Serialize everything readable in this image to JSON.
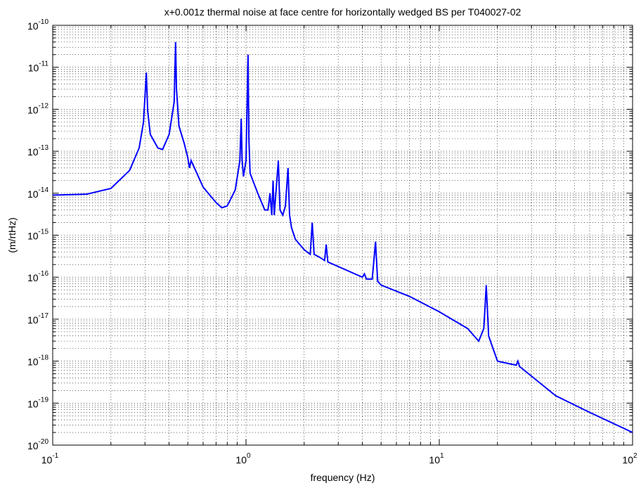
{
  "chart_data": {
    "type": "line",
    "title": "x+0.001z thermal noise at face centre for horizontally wedged BS per T040027-02",
    "xlabel": "frequency (Hz)",
    "ylabel": "(m/rtHz)",
    "x_scale": "log",
    "y_scale": "log",
    "xlim": [
      0.1,
      100
    ],
    "ylim": [
      1e-20,
      1e-10
    ],
    "grid": true,
    "grid_style": "dotted major and minor",
    "line_color": "#0000ff",
    "x_ticks": [
      {
        "base": "10",
        "exp": "-1"
      },
      {
        "base": "10",
        "exp": "0"
      },
      {
        "base": "10",
        "exp": "1"
      },
      {
        "base": "10",
        "exp": "2"
      }
    ],
    "y_ticks": [
      {
        "base": "10",
        "exp": "-10"
      },
      {
        "base": "10",
        "exp": "-11"
      },
      {
        "base": "10",
        "exp": "-12"
      },
      {
        "base": "10",
        "exp": "-13"
      },
      {
        "base": "10",
        "exp": "-14"
      },
      {
        "base": "10",
        "exp": "-15"
      },
      {
        "base": "10",
        "exp": "-16"
      },
      {
        "base": "10",
        "exp": "-17"
      },
      {
        "base": "10",
        "exp": "-18"
      },
      {
        "base": "10",
        "exp": "-19"
      },
      {
        "base": "10",
        "exp": "-20"
      }
    ],
    "series": [
      {
        "points": [
          [
            0.1,
            9e-15
          ],
          [
            0.15,
            9.5e-15
          ],
          [
            0.2,
            1.3e-14
          ],
          [
            0.25,
            3.5e-14
          ],
          [
            0.28,
            1.2e-13
          ],
          [
            0.295,
            5e-13
          ],
          [
            0.305,
            7.5e-12
          ],
          [
            0.31,
            9e-13
          ],
          [
            0.32,
            2.5e-13
          ],
          [
            0.35,
            1.2e-13
          ],
          [
            0.37,
            1.1e-13
          ],
          [
            0.4,
            2.5e-13
          ],
          [
            0.425,
            1.5e-12
          ],
          [
            0.432,
            4e-11
          ],
          [
            0.437,
            3e-12
          ],
          [
            0.45,
            4e-13
          ],
          [
            0.48,
            1.5e-13
          ],
          [
            0.5,
            7e-14
          ],
          [
            0.51,
            4e-14
          ],
          [
            0.52,
            6e-14
          ],
          [
            0.6,
            1.4e-14
          ],
          [
            0.7,
            6e-15
          ],
          [
            0.75,
            4.5e-15
          ],
          [
            0.8,
            5e-15
          ],
          [
            0.88,
            1.2e-14
          ],
          [
            0.93,
            6e-14
          ],
          [
            0.945,
            6e-13
          ],
          [
            0.955,
            6e-14
          ],
          [
            0.97,
            2.5e-14
          ],
          [
            1.0,
            6e-14
          ],
          [
            1.025,
            2e-11
          ],
          [
            1.035,
            2e-13
          ],
          [
            1.05,
            3e-14
          ],
          [
            1.15,
            1e-14
          ],
          [
            1.25,
            4e-15
          ],
          [
            1.3,
            4e-15
          ],
          [
            1.33,
            1e-14
          ],
          [
            1.36,
            3e-15
          ],
          [
            1.38,
            2e-14
          ],
          [
            1.4,
            3e-15
          ],
          [
            1.47,
            6e-14
          ],
          [
            1.5,
            4e-15
          ],
          [
            1.55,
            3e-15
          ],
          [
            1.6,
            5e-15
          ],
          [
            1.65,
            4e-14
          ],
          [
            1.68,
            3e-15
          ],
          [
            1.72,
            1.5e-15
          ],
          [
            1.8,
            8e-16
          ],
          [
            2.0,
            4.5e-16
          ],
          [
            2.15,
            3.5e-16
          ],
          [
            2.2,
            2e-15
          ],
          [
            2.25,
            3.5e-16
          ],
          [
            2.4,
            3e-16
          ],
          [
            2.55,
            2.5e-16
          ],
          [
            2.6,
            6e-16
          ],
          [
            2.65,
            2.3e-16
          ],
          [
            3.0,
            1.8e-16
          ],
          [
            4.0,
            1e-16
          ],
          [
            4.1,
            1.2e-16
          ],
          [
            4.2,
            9e-17
          ],
          [
            4.5,
            9e-17
          ],
          [
            4.68,
            7e-16
          ],
          [
            4.8,
            8e-17
          ],
          [
            5.0,
            6.5e-17
          ],
          [
            7.0,
            3.5e-17
          ],
          [
            10.0,
            1.5e-17
          ],
          [
            14.0,
            6e-18
          ],
          [
            16.0,
            3e-18
          ],
          [
            17.0,
            6e-18
          ],
          [
            17.5,
            6.5e-17
          ],
          [
            18.0,
            4e-18
          ],
          [
            20.0,
            1e-18
          ],
          [
            25.0,
            8e-19
          ],
          [
            25.5,
            1e-18
          ],
          [
            26.0,
            7.5e-19
          ],
          [
            40.0,
            1.5e-19
          ],
          [
            60.0,
            6e-20
          ],
          [
            100.0,
            2e-20
          ]
        ]
      }
    ]
  }
}
